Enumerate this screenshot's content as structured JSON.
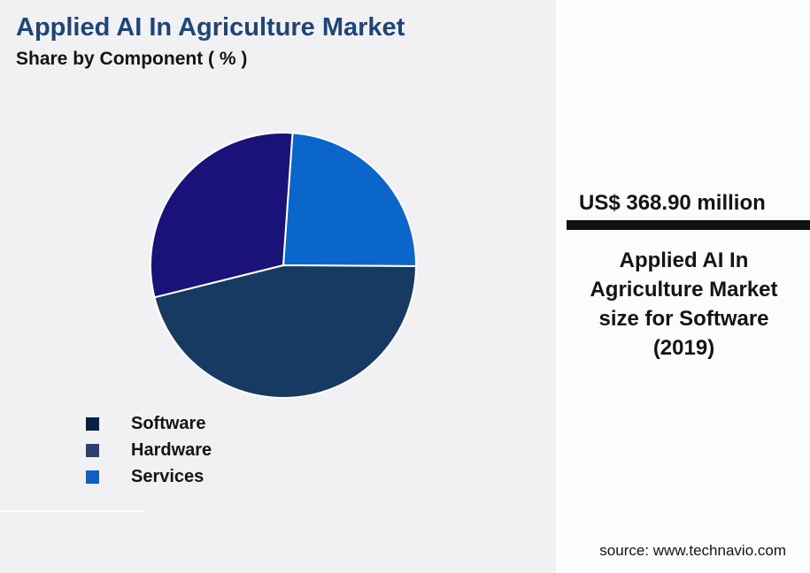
{
  "page": {
    "background_color": "#f1f1f4",
    "panel_background_color": "#fcfcfd"
  },
  "chart_data": {
    "type": "pie",
    "title": "Applied AI In Agriculture Market",
    "subtitle": "Share by Component ( % )",
    "title_color": "#1e4577",
    "slices": [
      {
        "label": "Software",
        "value": 46,
        "color": "#173a63"
      },
      {
        "label": "Hardware",
        "value": 30,
        "color": "#1a1278"
      },
      {
        "label": "Services",
        "value": 24,
        "color": "#0b66cb"
      }
    ],
    "start_angle_deg": 4,
    "draw_order": [
      2,
      0,
      1
    ],
    "slice_border_color": "#ffffff",
    "data_labels_shown": false,
    "legend_position": "bottom-left"
  },
  "legend": {
    "items": [
      {
        "label": "Software",
        "color": "#0a2145"
      },
      {
        "label": "Hardware",
        "color": "#2e4070"
      },
      {
        "label": "Services",
        "color": "#0d5fc2"
      }
    ]
  },
  "panel": {
    "value": "US$ 368.90 million",
    "divider_color": "#111111",
    "caption_lines": [
      "Applied AI In",
      "Agriculture Market",
      "size for Software",
      "(2019)"
    ],
    "source": "source: www.technavio.com"
  }
}
